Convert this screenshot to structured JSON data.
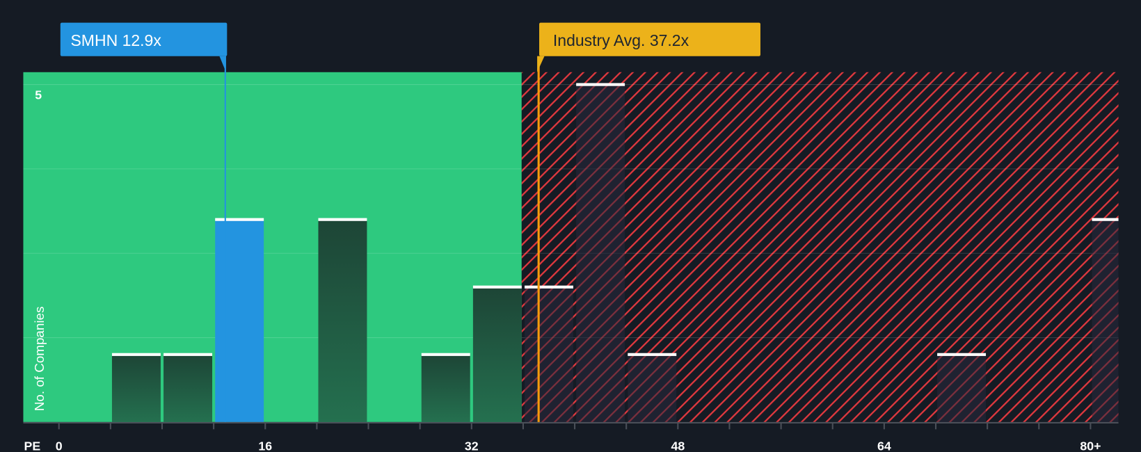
{
  "chart_data": {
    "type": "bar",
    "title": "",
    "xlabel": "PE",
    "ylabel": "No. of Companies",
    "xlim": [
      0,
      84
    ],
    "ylim": [
      0,
      5
    ],
    "x_ticks": [
      0,
      16,
      32,
      48,
      64,
      80
    ],
    "x_tick_labels": [
      "0",
      "16",
      "32",
      "48",
      "64",
      "80+"
    ],
    "y_tick_labels": [
      "5"
    ],
    "y_grid_step": 1.25,
    "bin_width": 4,
    "bins": [
      {
        "start": 4,
        "count": 1
      },
      {
        "start": 8,
        "count": 1
      },
      {
        "start": 12,
        "count": 3,
        "highlight": true
      },
      {
        "start": 20,
        "count": 3
      },
      {
        "start": 28,
        "count": 1
      },
      {
        "start": 32,
        "count": 2
      },
      {
        "start": 36,
        "count": 2
      },
      {
        "start": 40,
        "count": 5
      },
      {
        "start": 44,
        "count": 1
      },
      {
        "start": 68,
        "count": 1
      },
      {
        "start": 80,
        "count": 3
      }
    ],
    "company": {
      "label": "SMHN 12.9x",
      "value": 12.9,
      "color": "#2394e0"
    },
    "industry_avg": {
      "label": "Industry Avg. 37.2x",
      "value": 37.2,
      "color": "#ecb21a"
    },
    "fair_region_end": 36,
    "colors": {
      "fair": "#2ec97f",
      "overvalued_hatch": "#e0383e",
      "bar_dark": "#1f4a3c",
      "background": "#151b24"
    }
  }
}
